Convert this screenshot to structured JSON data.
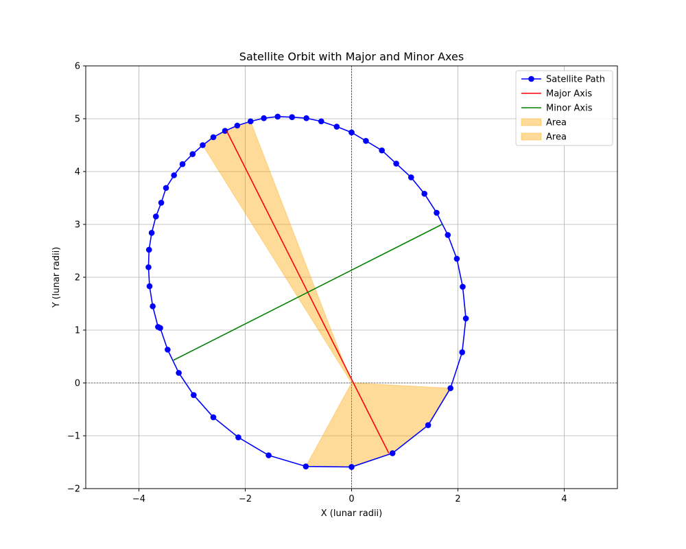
{
  "chart_data": {
    "type": "line",
    "title": "Satellite Orbit with Major and Minor Axes",
    "xlabel": "X (lunar radii)",
    "ylabel": "Y (lunar radii)",
    "xlim": [
      -5,
      5
    ],
    "ylim": [
      -2,
      6
    ],
    "xticks": [
      -4,
      -2,
      0,
      2,
      4
    ],
    "yticks": [
      -2,
      -1,
      0,
      1,
      2,
      3,
      4,
      5,
      6
    ],
    "grid": true,
    "legend_position": "top-right",
    "series": [
      {
        "name": "Satellite Path",
        "color": "#0000ff",
        "marker": "circle",
        "points": [
          [
            0.0,
            4.74
          ],
          [
            0.27,
            4.58
          ],
          [
            0.57,
            4.4
          ],
          [
            0.84,
            4.15
          ],
          [
            1.12,
            3.89
          ],
          [
            1.37,
            3.58
          ],
          [
            1.6,
            3.22
          ],
          [
            1.81,
            2.8
          ],
          [
            1.98,
            2.35
          ],
          [
            2.09,
            1.82
          ],
          [
            2.15,
            1.22
          ],
          [
            2.08,
            0.58
          ],
          [
            1.86,
            -0.1
          ],
          [
            1.44,
            -0.8
          ],
          [
            0.77,
            -1.33
          ],
          [
            0.0,
            -1.59
          ],
          [
            -0.86,
            -1.58
          ],
          [
            -1.56,
            -1.37
          ],
          [
            -2.13,
            -1.03
          ],
          [
            -2.6,
            -0.65
          ],
          [
            -2.97,
            -0.23
          ],
          [
            -3.25,
            0.19
          ],
          [
            -3.46,
            0.63
          ],
          [
            -3.6,
            1.04
          ],
          [
            -3.64,
            1.06
          ],
          [
            -3.74,
            1.45
          ],
          [
            -3.8,
            1.83
          ],
          [
            -3.82,
            2.19
          ],
          [
            -3.81,
            2.52
          ],
          [
            -3.76,
            2.84
          ],
          [
            -3.68,
            3.15
          ],
          [
            -3.58,
            3.41
          ],
          [
            -3.49,
            3.69
          ],
          [
            -3.34,
            3.93
          ],
          [
            -3.18,
            4.14
          ],
          [
            -2.99,
            4.33
          ],
          [
            -2.8,
            4.5
          ],
          [
            -2.6,
            4.65
          ],
          [
            -2.38,
            4.77
          ],
          [
            -2.15,
            4.87
          ],
          [
            -1.9,
            4.95
          ],
          [
            -1.65,
            5.01
          ],
          [
            -1.39,
            5.04
          ],
          [
            -1.12,
            5.03
          ],
          [
            -0.85,
            5.01
          ],
          [
            -0.57,
            4.95
          ],
          [
            -0.28,
            4.85
          ],
          [
            0.0,
            4.74
          ]
        ]
      },
      {
        "name": "Major Axis",
        "color": "#ff0000",
        "points": [
          [
            0.7,
            -1.33
          ],
          [
            -2.35,
            4.77
          ]
        ]
      },
      {
        "name": "Minor Axis",
        "color": "#008000",
        "points": [
          [
            -3.35,
            0.43
          ],
          [
            1.7,
            3.0
          ]
        ]
      }
    ],
    "areas": [
      {
        "name": "Area",
        "color": "#ffa500",
        "opacity": 0.4,
        "polygon": [
          [
            0.0,
            0.0
          ],
          [
            -2.8,
            4.5
          ],
          [
            -2.6,
            4.65
          ],
          [
            -2.38,
            4.77
          ],
          [
            -2.15,
            4.87
          ],
          [
            -1.9,
            4.95
          ]
        ]
      },
      {
        "name": "Area",
        "color": "#ffa500",
        "opacity": 0.4,
        "polygon": [
          [
            0.0,
            0.0
          ],
          [
            1.86,
            -0.1
          ],
          [
            1.44,
            -0.8
          ],
          [
            0.77,
            -1.33
          ],
          [
            0.0,
            -1.59
          ],
          [
            -0.86,
            -1.58
          ]
        ]
      }
    ]
  }
}
